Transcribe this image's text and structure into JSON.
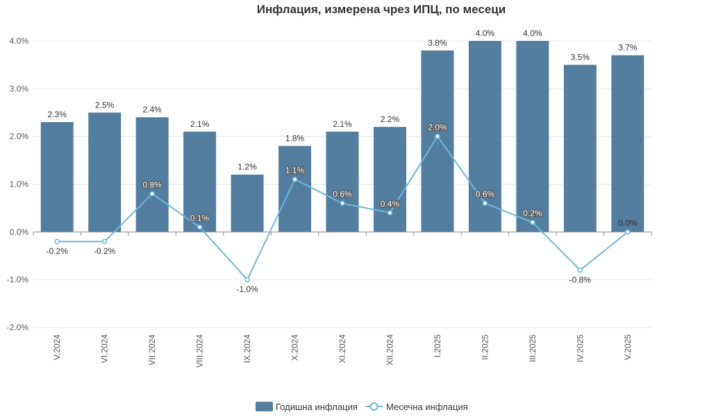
{
  "chart_data": {
    "type": "bar",
    "title": "Инфлация, измерена чрез ИПЦ, по месеци",
    "categories": [
      "V.2024",
      "VI.2024",
      "VII.2024",
      "VIII.2024",
      "IX.2024",
      "X.2024",
      "XI.2024",
      "XII.2024",
      "I.2025",
      "II.2025",
      "III.2025",
      "IV.2025",
      "V.2025"
    ],
    "series": [
      {
        "name": "Годишна инфлация",
        "type": "bar",
        "color": "#537ea0",
        "values": [
          2.3,
          2.5,
          2.4,
          2.1,
          1.2,
          1.8,
          2.1,
          2.2,
          3.8,
          4.0,
          4.0,
          3.5,
          3.7
        ],
        "labels": [
          "2.3%",
          "2.5%",
          "2.4%",
          "2.1%",
          "1.2%",
          "1.8%",
          "2.1%",
          "2.2%",
          "3.8%",
          "4.0%",
          "4.0%",
          "3.5%",
          "3.7%"
        ]
      },
      {
        "name": "Месечна инфлация",
        "type": "line",
        "color": "#6bb8dc",
        "values": [
          -0.2,
          -0.2,
          0.8,
          0.1,
          -1.0,
          1.1,
          0.6,
          0.4,
          2.0,
          0.6,
          0.2,
          -0.8,
          0.0
        ],
        "labels": [
          "-0.2%",
          "-0.2%",
          "0.8%",
          "0.1%",
          "-1.0%",
          "1.1%",
          "0.6%",
          "0.4%",
          "2.0%",
          "0.6%",
          "0.2%",
          "-0.8%",
          "0.0%"
        ]
      }
    ],
    "ylim": [
      -2.0,
      4.0
    ],
    "yticks": [
      "4.0%",
      "3.0%",
      "2.0%",
      "1.0%",
      "0.0%",
      "-1.0%",
      "-2.0%"
    ],
    "ytick_values": [
      4,
      3,
      2,
      1,
      0,
      -1,
      -2
    ],
    "grid": true,
    "legend": "bottom-center"
  }
}
